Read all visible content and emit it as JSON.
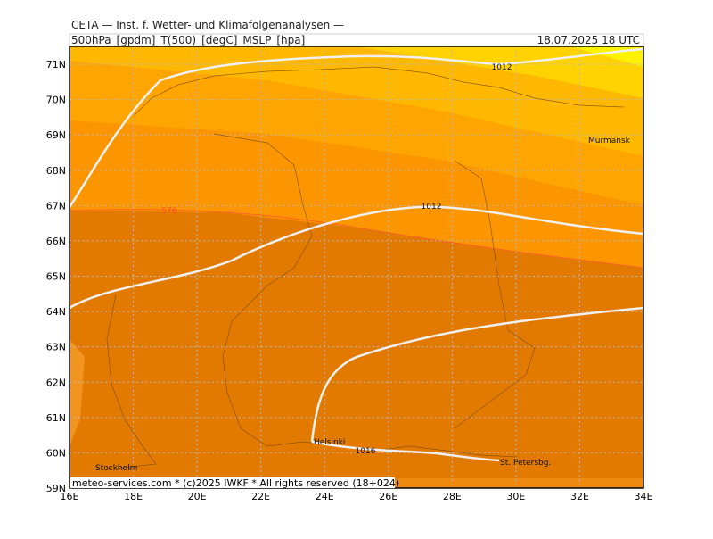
{
  "header": {
    "title": "CETA — Inst. f. Wetter- und Klimafolgenanalysen —",
    "parameters": "500hPa_[gpdm]_T(500)_[degC]_MSLP_[hpa]",
    "valid_time": "18.07.2025  18 UTC"
  },
  "map": {
    "lat_labels": [
      "71N",
      "70N",
      "69N",
      "68N",
      "67N",
      "66N",
      "65N",
      "64N",
      "63N",
      "62N",
      "61N",
      "60N",
      "59N"
    ],
    "lon_labels": [
      "16E",
      "18E",
      "20E",
      "22E",
      "24E",
      "26E",
      "28E",
      "30E",
      "32E",
      "34E"
    ],
    "cities": [
      "Murmansk",
      "Helsinki",
      "Stockholm",
      "St. Petersbg."
    ],
    "contour_labels": [
      "1012",
      "1012",
      "1016",
      "576"
    ]
  },
  "footer": "meteo-services.com * (c)2025 IWKF * All rights reserved (18+024)"
}
